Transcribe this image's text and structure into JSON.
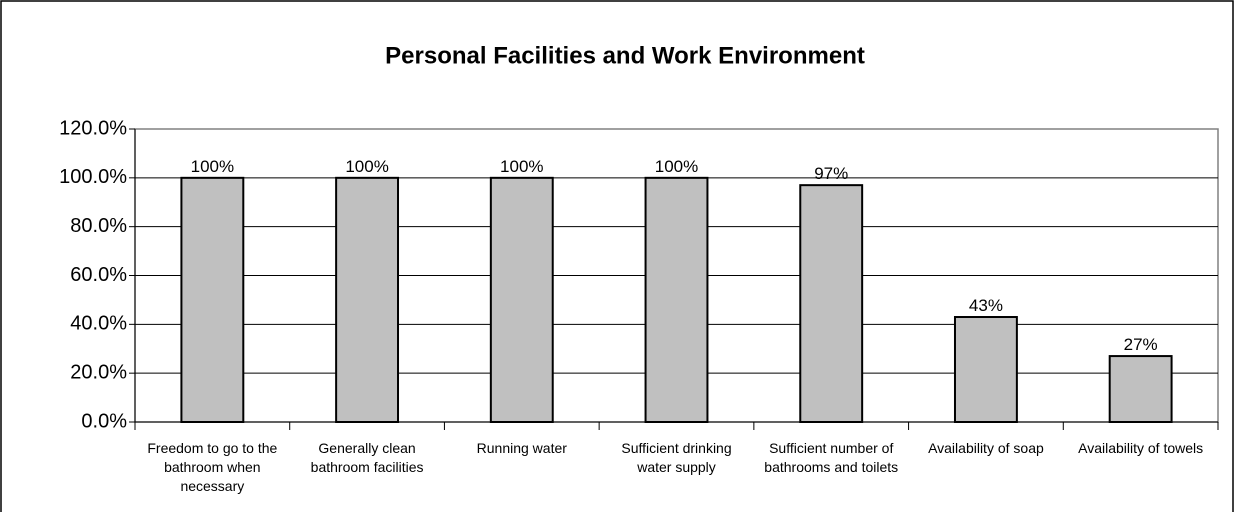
{
  "chart_data": {
    "type": "bar",
    "title": "Personal Facilities and Work Environment",
    "categories": [
      "Freedom to go to the bathroom when necessary",
      "Generally clean bathroom facilities",
      "Running water",
      "Sufficient drinking water supply",
      "Sufficient number of bathrooms and toilets",
      "Availability of soap",
      "Availability of towels"
    ],
    "values": [
      100,
      100,
      100,
      100,
      97,
      43,
      27
    ],
    "value_labels": [
      "100%",
      "100%",
      "100%",
      "100%",
      "97%",
      "43%",
      "27%"
    ],
    "color": "#c0c0c0",
    "ylim": [
      0,
      120
    ],
    "yticks": [
      {
        "value": 0,
        "label": "0.0%"
      },
      {
        "value": 20,
        "label": "20.0%"
      },
      {
        "value": 40,
        "label": "40.0%"
      },
      {
        "value": 60,
        "label": "60.0%"
      },
      {
        "value": 80,
        "label": "80.0%"
      },
      {
        "value": 100,
        "label": "100.0%"
      },
      {
        "value": 120,
        "label": "120.0%"
      }
    ],
    "grid": true
  }
}
